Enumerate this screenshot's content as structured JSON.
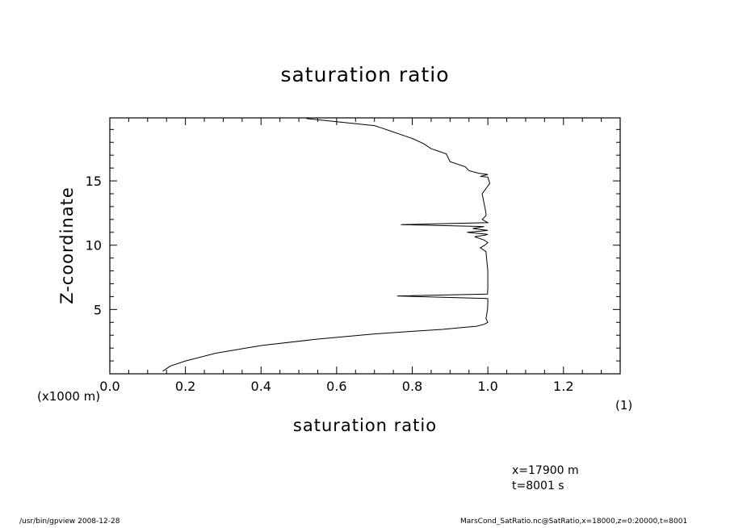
{
  "chart_data": {
    "type": "line",
    "title": "saturation ratio",
    "xlabel": "saturation ratio",
    "ylabel": "Z-coordinate",
    "x_unit": "(1)",
    "y_unit": "(x1000 m)",
    "xlim": [
      0.0,
      1.35
    ],
    "ylim": [
      0,
      19.9
    ],
    "x_ticks": [
      "0.0",
      "0.2",
      "0.4",
      "0.6",
      "0.8",
      "1.0",
      "1.2"
    ],
    "y_ticks": [
      "5",
      "10",
      "15"
    ],
    "grid": false,
    "series": [
      {
        "x": [
          0.14,
          0.16,
          0.2,
          0.28,
          0.4,
          0.55,
          0.7,
          0.8,
          0.88,
          0.93,
          0.97,
          0.99,
          1.0,
          0.995,
          0.999,
          1.0,
          1.0,
          0.999,
          0.76,
          0.999,
          1.0,
          1.0,
          0.995,
          0.98,
          0.992,
          1.0,
          0.99,
          0.965,
          0.995,
          1.0,
          0.945,
          1.0,
          0.96,
          0.99,
          0.77,
          1.0,
          0.985,
          0.995,
          0.995,
          0.985,
          1.005,
          1.0,
          0.98,
          1.0,
          0.975,
          0.95,
          0.94,
          0.9,
          0.89,
          0.87,
          0.85,
          0.83,
          0.8,
          0.77,
          0.74,
          0.72,
          0.7,
          0.6,
          0.52
        ],
        "y": [
          0.2,
          0.6,
          1.0,
          1.6,
          2.2,
          2.7,
          3.1,
          3.3,
          3.45,
          3.6,
          3.7,
          3.85,
          4.0,
          4.3,
          5.0,
          5.5,
          5.8,
          5.85,
          6.05,
          6.2,
          6.7,
          8.0,
          9.5,
          9.8,
          10.0,
          10.2,
          10.4,
          10.65,
          10.8,
          10.85,
          11.0,
          11.15,
          11.3,
          11.45,
          11.6,
          11.75,
          12.0,
          12.3,
          12.5,
          14.0,
          14.8,
          15.3,
          15.35,
          15.5,
          15.6,
          15.8,
          16.1,
          16.5,
          17.1,
          17.3,
          17.5,
          17.9,
          18.3,
          18.6,
          18.9,
          19.1,
          19.3,
          19.6,
          19.85
        ]
      }
    ]
  },
  "info": {
    "x_position": "x=17900 m",
    "time": "t=8001 s"
  },
  "footer": {
    "left": "/usr/bin/gpview  2008-12-28",
    "right": "MarsCond_SatRatio.nc@SatRatio,x=18000,z=0:20000,t=8001"
  }
}
